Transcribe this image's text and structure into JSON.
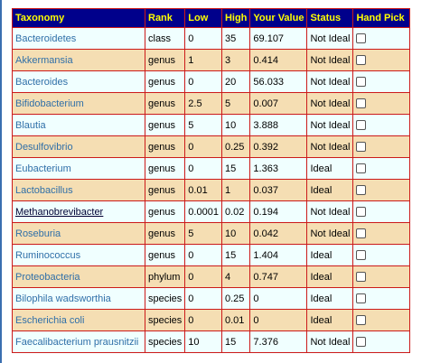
{
  "table": {
    "headers": [
      "Taxonomy",
      "Rank",
      "Low",
      "High",
      "Your Value",
      "Status",
      "Hand Pick"
    ],
    "rows": [
      {
        "taxonomy": "Bacteroidetes",
        "rank": "class",
        "low": "0",
        "high": "35",
        "value": "69.107",
        "status": "Not Ideal"
      },
      {
        "taxonomy": "Akkermansia",
        "rank": "genus",
        "low": "1",
        "high": "3",
        "value": "0.414",
        "status": "Not Ideal"
      },
      {
        "taxonomy": "Bacteroides",
        "rank": "genus",
        "low": "0",
        "high": "20",
        "value": "56.033",
        "status": "Not Ideal"
      },
      {
        "taxonomy": "Bifidobacterium",
        "rank": "genus",
        "low": "2.5",
        "high": "5",
        "value": "0.007",
        "status": "Not Ideal"
      },
      {
        "taxonomy": "Blautia",
        "rank": "genus",
        "low": "5",
        "high": "10",
        "value": "3.888",
        "status": "Not Ideal"
      },
      {
        "taxonomy": "Desulfovibrio",
        "rank": "genus",
        "low": "0",
        "high": "0.25",
        "value": "0.392",
        "status": "Not Ideal"
      },
      {
        "taxonomy": "Eubacterium",
        "rank": "genus",
        "low": "0",
        "high": "15",
        "value": "1.363",
        "status": "Ideal"
      },
      {
        "taxonomy": "Lactobacillus",
        "rank": "genus",
        "low": "0.01",
        "high": "1",
        "value": "0.037",
        "status": "Ideal"
      },
      {
        "taxonomy": "Methanobrevibacter",
        "rank": "genus",
        "low": "0.0001",
        "high": "0.02",
        "value": "0.194",
        "status": "Not Ideal"
      },
      {
        "taxonomy": "Roseburia",
        "rank": "genus",
        "low": "5",
        "high": "10",
        "value": "0.042",
        "status": "Not Ideal"
      },
      {
        "taxonomy": "Ruminococcus",
        "rank": "genus",
        "low": "0",
        "high": "15",
        "value": "1.404",
        "status": "Ideal"
      },
      {
        "taxonomy": "Proteobacteria",
        "rank": "phylum",
        "low": "0",
        "high": "4",
        "value": "0.747",
        "status": "Ideal"
      },
      {
        "taxonomy": "Bilophila wadsworthia",
        "rank": "species",
        "low": "0",
        "high": "0.25",
        "value": "0",
        "status": "Ideal"
      },
      {
        "taxonomy": "Escherichia coli",
        "rank": "species",
        "low": "0",
        "high": "0.01",
        "value": "0",
        "status": "Ideal"
      },
      {
        "taxonomy": "Faecalibacterium prausnitzii",
        "rank": "species",
        "low": "10",
        "high": "15",
        "value": "7.376",
        "status": "Not Ideal"
      }
    ]
  },
  "colors": {
    "header_bg": "#00008b",
    "header_text": "#ffff00",
    "row_odd": "#f0ffff",
    "row_even": "#f5deb3",
    "border": "#cc1a1a",
    "link": "#2f6fa8"
  }
}
